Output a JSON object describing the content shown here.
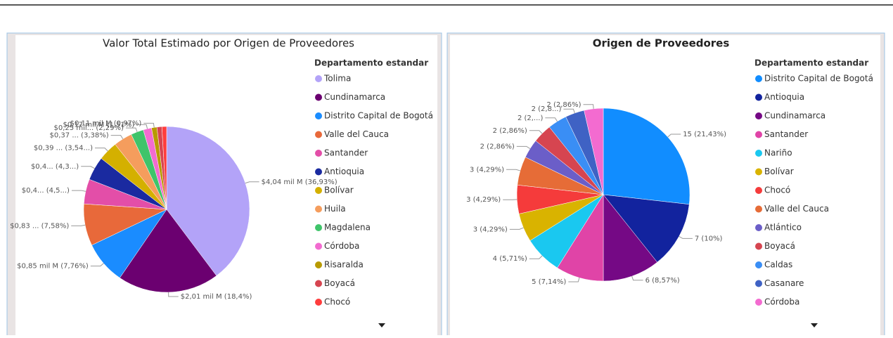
{
  "chart_data": [
    {
      "type": "pie",
      "title": "Valor Total Estimado por Origen de Proveedores",
      "legend_title": "Departamento estandar",
      "categories": [
        "Tolima",
        "Cundinamarca",
        "Distrito Capital de Bogotá",
        "Valle del Cauca",
        "Santander",
        "Antioquia",
        "Bolívar",
        "Huila",
        "Magdalena",
        "Córdoba",
        "Risaralda",
        "Boyacá",
        "Chocó"
      ],
      "values": [
        36.93,
        18.4,
        7.76,
        7.58,
        4.5,
        4.3,
        3.54,
        3.38,
        2.29,
        1.51,
        0.97,
        0.9,
        0.85
      ],
      "value_labels": [
        "$4,04 mil M (36,93%)",
        "$2,01 mil M (18,4%)",
        "$0,85 mil M (7,76%)",
        "$0,83 ... (7,58%)",
        "$0,4... (4,5...)",
        "$0,4... (4,3...)",
        "$0,39 ... (3,54...)",
        "$0,37 ... (3,38%)",
        "$0,25 mil... (2,29%)",
        "$0,17 mil M (1,51%)",
        "$0,11 mil M (0,97%)",
        null,
        null
      ],
      "colors": [
        "#b3a3f8",
        "#6b0070",
        "#1a8cff",
        "#e8693a",
        "#e34ea8",
        "#1a2aa0",
        "#d4b000",
        "#f59d5d",
        "#3fc46a",
        "#f26bd0",
        "#b89a00",
        "#d64550",
        "#ff3d3d"
      ]
    },
    {
      "type": "pie",
      "title": "Origen de Proveedores",
      "legend_title": "Departamento estandar",
      "categories": [
        "Distrito Capital de Bogotá",
        "Antioquia",
        "Cundinamarca",
        "Santander",
        "Nariño",
        "Bolívar",
        "Chocó",
        "Valle del Cauca",
        "Atlántico",
        "Boyacá",
        "Caldas",
        "Casanare",
        "Córdoba"
      ],
      "values": [
        15,
        7,
        6,
        5,
        4,
        3,
        3,
        3,
        2,
        2,
        2,
        2,
        2
      ],
      "value_labels": [
        "15 (21,43%)",
        "7 (10%)",
        "6 (8,57%)",
        "5 (7,14%)",
        "4 (5,71%)",
        "3 (4,29%)",
        "3 (4,29%)",
        "3 (4,29%)",
        "2 (2,86%)",
        "2 (2,86%)",
        "2 (2,...)",
        "2 (2,8...)",
        "2 (2,86%)"
      ],
      "colors": [
        "#118dff",
        "#12239e",
        "#750985",
        "#e044a7",
        "#1ac8f0",
        "#d9b300",
        "#f53b3b",
        "#e66c37",
        "#6b5ec8",
        "#d64550",
        "#3a8ef5",
        "#3f62c4",
        "#f36bd0"
      ]
    }
  ]
}
